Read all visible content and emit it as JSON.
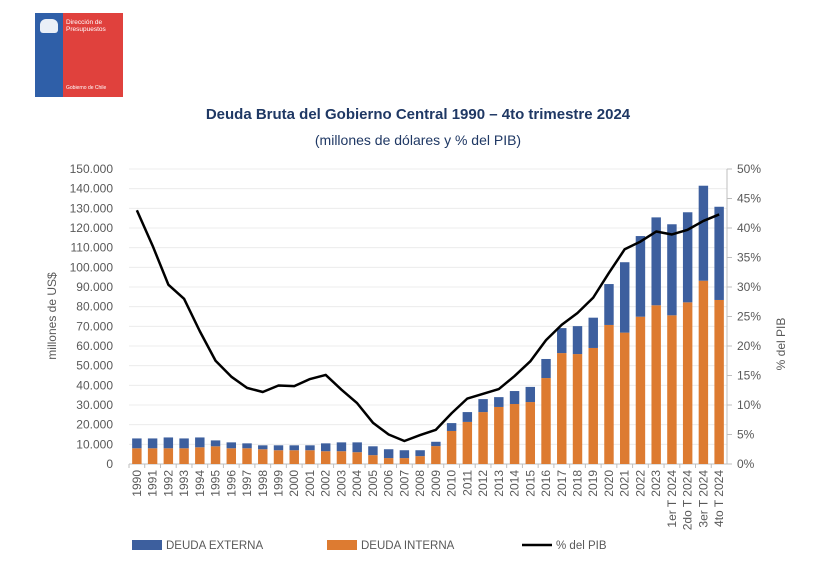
{
  "logo": {
    "line1": "Dirección de",
    "line2": "Presupuestos",
    "footer": "Gobierno de Chile"
  },
  "colors": {
    "externa": "#3d5f9e",
    "interna": "#dd7b31",
    "line": "#000000",
    "title": "#1f3864"
  },
  "chart_data": {
    "type": "bar",
    "title": "Deuda Bruta del Gobierno Central 1990 – 4to trimestre 2024",
    "subtitle": "(millones de dólares y % del PIB)",
    "ylabel": "millones de US$",
    "y2label": "% del PIB",
    "ylim": [
      0,
      150000
    ],
    "y2lim": [
      0,
      50
    ],
    "yticks": [
      "0",
      "10.000",
      "20.000",
      "30.000",
      "40.000",
      "50.000",
      "60.000",
      "70.000",
      "80.000",
      "90.000",
      "100.000",
      "110.000",
      "120.000",
      "130.000",
      "140.000",
      "150.000"
    ],
    "y2ticks": [
      "0%",
      "5%",
      "10%",
      "15%",
      "20%",
      "25%",
      "30%",
      "35%",
      "40%",
      "45%",
      "50%"
    ],
    "categories": [
      "1990",
      "1991",
      "1992",
      "1993",
      "1994",
      "1995",
      "1996",
      "1997",
      "1998",
      "1999",
      "2000",
      "2001",
      "2002",
      "2003",
      "2004",
      "2005",
      "2006",
      "2007",
      "2008",
      "2009",
      "2010",
      "2011",
      "2012",
      "2013",
      "2014",
      "2015",
      "2016",
      "2017",
      "2018",
      "2019",
      "2020",
      "2021",
      "2022",
      "2023",
      "1er T 2024",
      "2do T 2024",
      "3er T 2024",
      "4to T 2024"
    ],
    "series": [
      {
        "name": "DEUDA EXTERNA",
        "type": "bar-stacked",
        "values": [
          5000,
          5000,
          5500,
          5000,
          5000,
          3000,
          3000,
          2500,
          2000,
          2500,
          2500,
          2500,
          4000,
          4500,
          5000,
          4500,
          4500,
          4000,
          3000,
          2200,
          4000,
          5000,
          6600,
          5000,
          6600,
          7700,
          9700,
          12700,
          14200,
          15400,
          20800,
          35800,
          41000,
          44700,
          46300,
          45800,
          48300,
          47400
        ]
      },
      {
        "name": "DEUDA INTERNA",
        "type": "bar-stacked",
        "values": [
          8000,
          8000,
          8000,
          8000,
          8500,
          9000,
          8000,
          8000,
          7500,
          7000,
          7000,
          7000,
          6500,
          6500,
          6000,
          4500,
          3000,
          3000,
          4000,
          9100,
          16800,
          21400,
          26400,
          29000,
          30500,
          31500,
          43700,
          56400,
          55900,
          59000,
          70700,
          66800,
          74900,
          80700,
          75600,
          82200,
          93200,
          83400
        ]
      },
      {
        "name": "% del PIB",
        "type": "line",
        "axis": "y2",
        "values": [
          43,
          37,
          30.4,
          28,
          22.5,
          17.5,
          14.8,
          12.9,
          12.2,
          13.3,
          13.2,
          14.4,
          15.1,
          12.6,
          10.3,
          7,
          5,
          3.9,
          4.9,
          5.8,
          8.6,
          11.1,
          11.9,
          12.7,
          14.9,
          17.4,
          21,
          23.6,
          25.6,
          28.2,
          32.4,
          36.4,
          37.7,
          39.4,
          38.9,
          39.7,
          41.2,
          42.3
        ]
      }
    ],
    "legend": "bottom",
    "grid": true
  }
}
